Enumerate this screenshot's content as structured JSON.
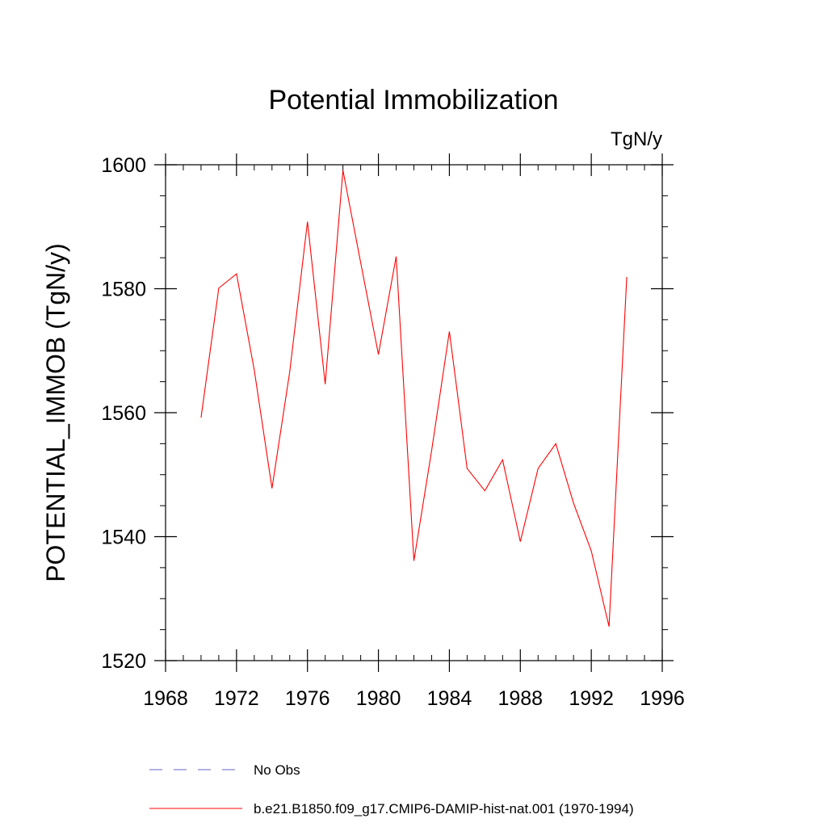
{
  "chart_data": {
    "type": "line",
    "title": "Potential Immobilization",
    "units_label": "TgN/y",
    "xlabel": "",
    "ylabel": "POTENTIAL_IMMOB  (TgN/y)",
    "xlim": [
      1968,
      1996
    ],
    "ylim": [
      1520,
      1600
    ],
    "x_ticks": [
      1968,
      1972,
      1976,
      1980,
      1984,
      1988,
      1992,
      1996
    ],
    "y_ticks": [
      1520,
      1540,
      1560,
      1580,
      1600
    ],
    "grid": false,
    "legend_position": "bottom",
    "series": [
      {
        "name": "No Obs",
        "color": "#6666cc",
        "style": "dashed",
        "x": [],
        "values": []
      },
      {
        "name": "b.e21.B1850.f09_g17.CMIP6-DAMIP-hist-nat.001 (1970-1994)",
        "color": "#ff0000",
        "style": "solid",
        "x": [
          1970,
          1971,
          1972,
          1973,
          1974,
          1975,
          1976,
          1977,
          1978,
          1979,
          1980,
          1981,
          1982,
          1983,
          1984,
          1985,
          1986,
          1987,
          1988,
          1989,
          1990,
          1991,
          1992,
          1993,
          1994
        ],
        "values": [
          1559.2,
          1580.1,
          1582.4,
          1566.9,
          1547.8,
          1566.6,
          1590.8,
          1564.6,
          1599.1,
          1584.2,
          1569.4,
          1585.2,
          1536.1,
          1553.9,
          1573.1,
          1551.0,
          1547.4,
          1552.4,
          1539.2,
          1551.0,
          1555.0,
          1545.4,
          1537.7,
          1525.5,
          1581.9
        ]
      }
    ]
  }
}
